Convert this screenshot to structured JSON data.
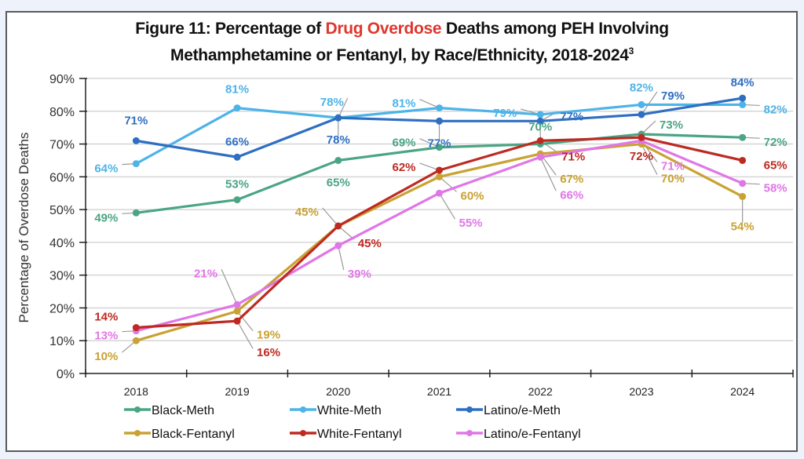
{
  "title": {
    "prefix": "Figure 11: Percentage of ",
    "highlight": "Drug Overdose",
    "suffix_line1": " Deaths among PEH Involving",
    "line2": "Methamphetamine or Fentanyl, by Race/Ethnicity, 2018-2024",
    "superscript": "3",
    "highlight_color": "#e0362c"
  },
  "chart_data": {
    "type": "line",
    "title": "Figure 11: Percentage of Drug Overdose Deaths among PEH Involving Methamphetamine or Fentanyl, by Race/Ethnicity, 2018-2024",
    "xlabel": "",
    "ylabel": "Percentage of Overdose Deaths",
    "x": [
      "2018",
      "2019",
      "2020",
      "2021",
      "2022",
      "2023",
      "2024"
    ],
    "ylim": [
      0,
      90
    ],
    "y_ticks": [
      "0%",
      "10%",
      "20%",
      "30%",
      "40%",
      "50%",
      "60%",
      "70%",
      "80%",
      "90%"
    ],
    "y_tick_values": [
      0,
      10,
      20,
      30,
      40,
      50,
      60,
      70,
      80,
      90
    ],
    "grid": true,
    "legend_position": "bottom",
    "series": [
      {
        "name": "Black-Meth",
        "color": "#4aa583",
        "values": [
          49,
          53,
          65,
          69,
          70,
          73,
          72
        ],
        "labels": [
          "49%",
          "53%",
          "65%",
          "69%",
          "70%",
          "73%",
          "72%"
        ]
      },
      {
        "name": "White-Meth",
        "color": "#4db3e8",
        "values": [
          64,
          81,
          78,
          81,
          79,
          82,
          82
        ],
        "labels": [
          "64%",
          "81%",
          "78%",
          "81%",
          "79%",
          "82%",
          "82%"
        ]
      },
      {
        "name": "Latino/e-Meth",
        "color": "#2f6fc2",
        "values": [
          71,
          66,
          78,
          77,
          77,
          79,
          84
        ],
        "labels": [
          "71%",
          "66%",
          "78%",
          "77%",
          "77%",
          "79%",
          "84%"
        ]
      },
      {
        "name": "Black-Fentanyl",
        "color": "#c9a233",
        "values": [
          10,
          19,
          45,
          60,
          67,
          70,
          54
        ],
        "labels": [
          "10%",
          "19%",
          "45%",
          "60%",
          "67%",
          "70%",
          "54%"
        ]
      },
      {
        "name": "White-Fentanyl",
        "color": "#be2a22",
        "values": [
          14,
          16,
          45,
          62,
          71,
          72,
          65
        ],
        "labels": [
          "14%",
          "16%",
          "45%",
          "62%",
          "71%",
          "72%",
          "65%"
        ]
      },
      {
        "name": "Latino/e-Fentanyl",
        "color": "#e077e6",
        "values": [
          13,
          21,
          39,
          55,
          66,
          71,
          58
        ],
        "labels": [
          "13%",
          "21%",
          "39%",
          "55%",
          "66%",
          "71%",
          "58%"
        ]
      }
    ]
  }
}
